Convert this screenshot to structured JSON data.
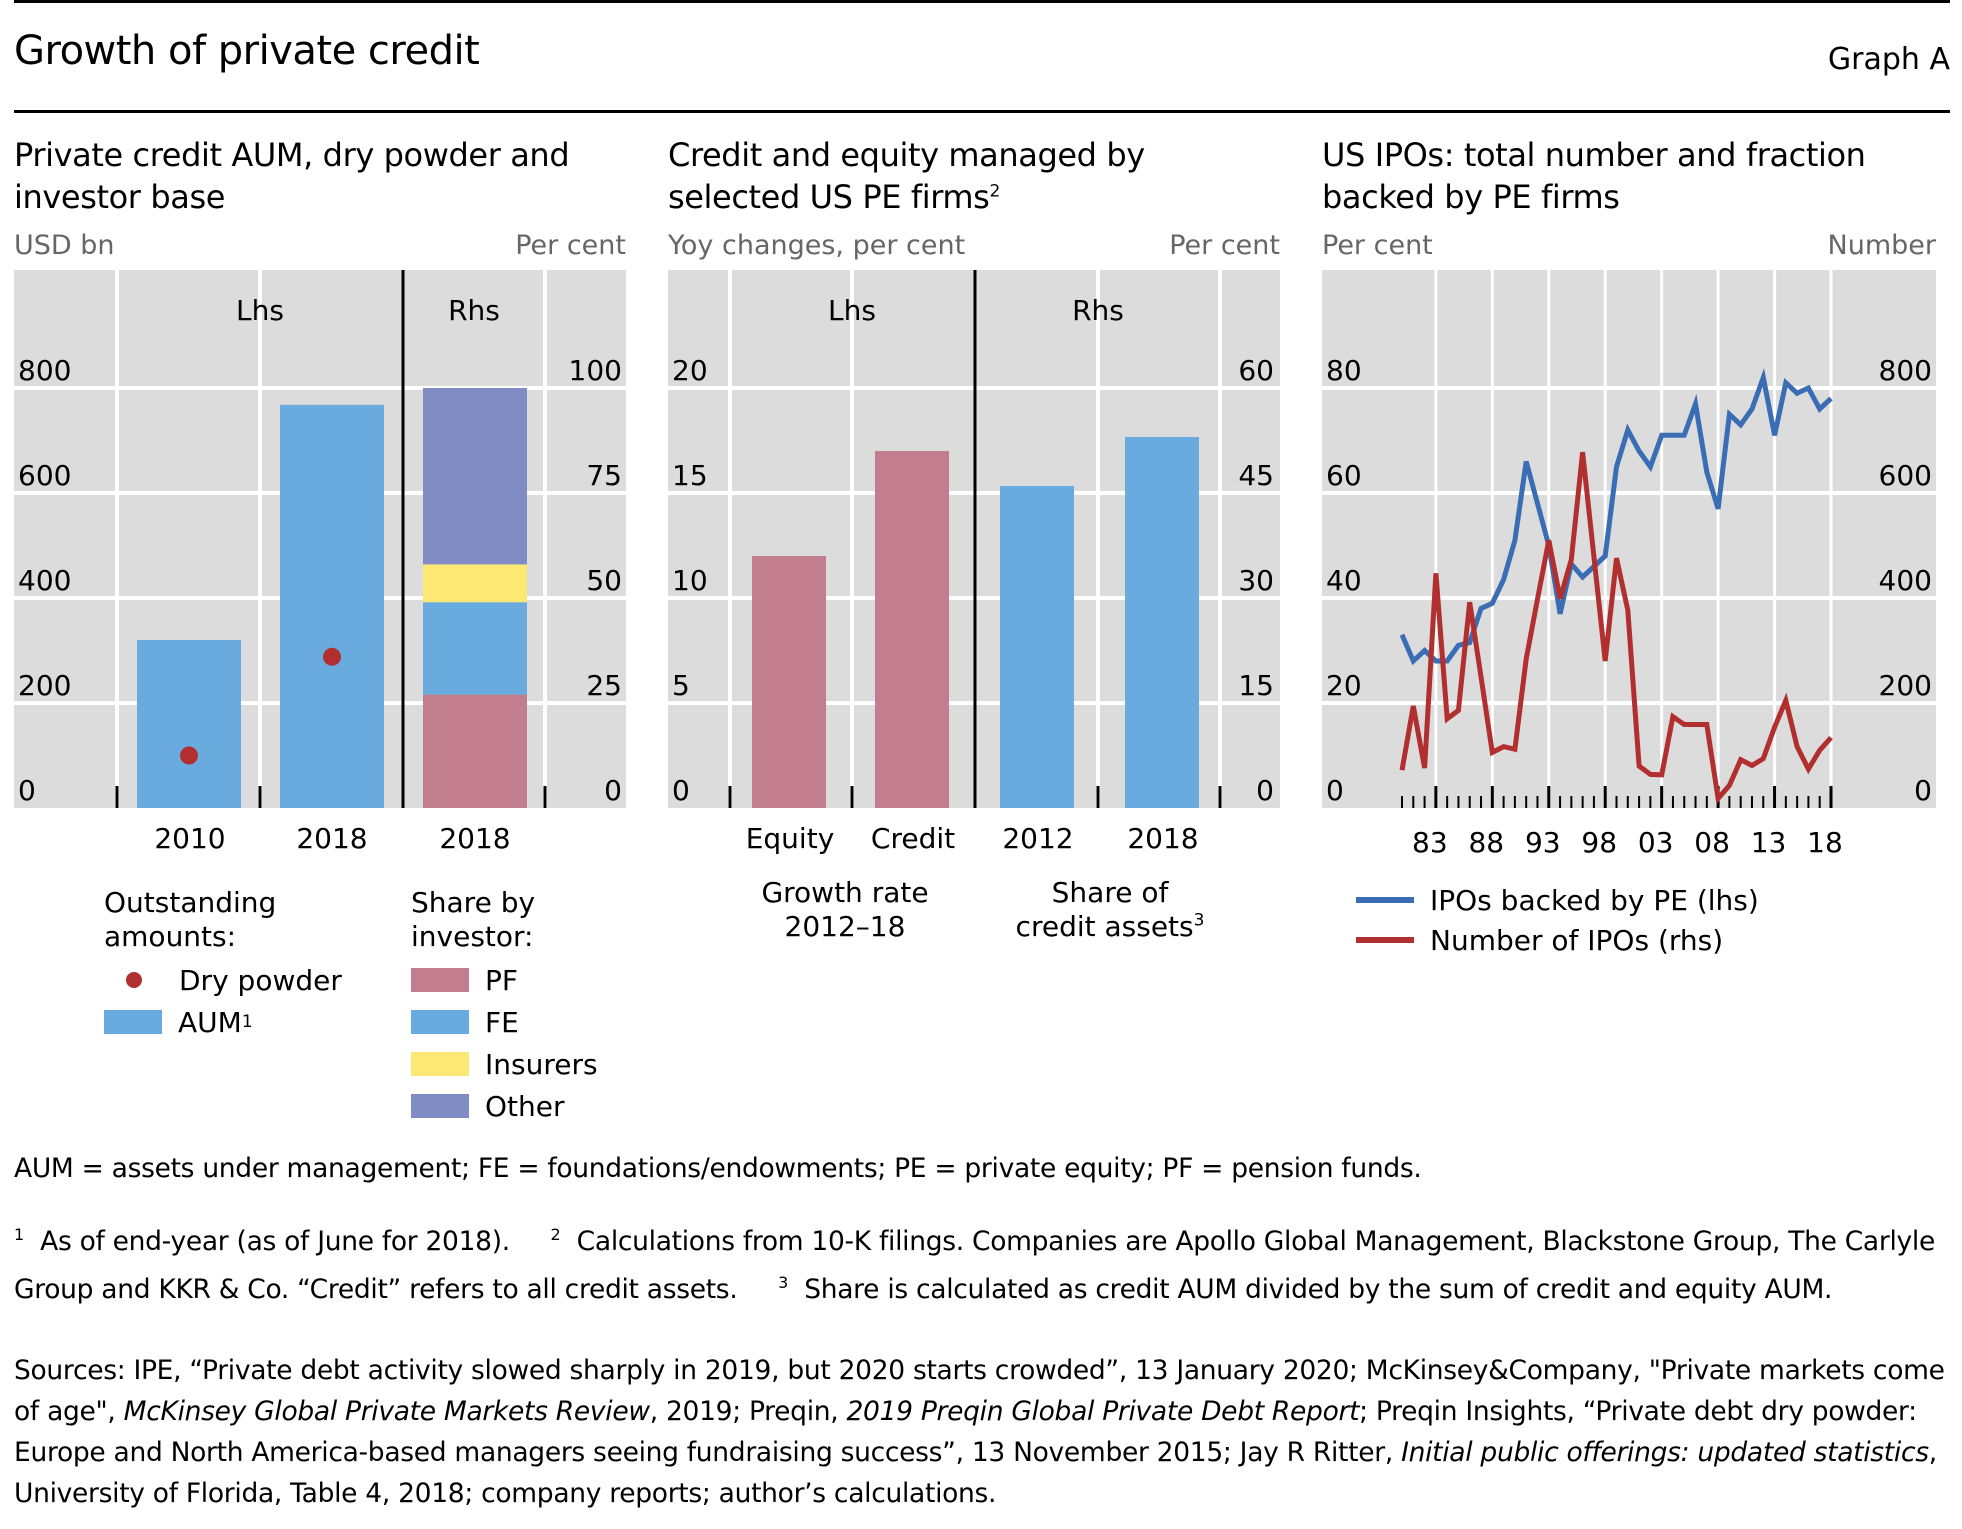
{
  "header": {
    "title": "Growth of private credit",
    "graph_label": "Graph A"
  },
  "panels": {
    "p1": {
      "title_line1": "Private credit AUM, dry powder and",
      "title_line2": "investor base",
      "unit_left": "USD bn",
      "unit_right": "Per cent",
      "lhs_marker": "Lhs",
      "rhs_marker": "Rhs",
      "categories": [
        "2010",
        "2018",
        "2018"
      ],
      "legend": {
        "group1_title_line1": "Outstanding",
        "group1_title_line2": "amounts:",
        "dry_powder": "Dry powder",
        "aum": "AUM",
        "aum_sup": "1",
        "group2_title_line1": "Share by",
        "group2_title_line2": "investor:",
        "pf": "PF",
        "fe": "FE",
        "insurers": "Insurers",
        "other": "Other"
      }
    },
    "p2": {
      "title_line1": "Credit and equity managed by",
      "title_line2": "selected US PE firms",
      "title_sup": "2",
      "unit_left": "Yoy changes, per cent",
      "unit_right": "Per cent",
      "lhs_marker": "Lhs",
      "rhs_marker": "Rhs",
      "categories": [
        "Equity",
        "Credit",
        "2012",
        "2018"
      ],
      "group1_line1": "Growth rate",
      "group1_line2": "2012–18",
      "group2_line1": "Share of",
      "group2_line2": "credit assets",
      "group2_sup": "3"
    },
    "p3": {
      "title_line1": "US IPOs: total number and fraction",
      "title_line2": "backed by PE firms",
      "unit_left": "Per cent",
      "unit_right": "Number",
      "legend": {
        "blue": "IPOs backed by PE (lhs)",
        "red": "Number of IPOs (rhs)"
      }
    }
  },
  "colors": {
    "plot_bg": "#dcdcdc",
    "aum": "#6aabdf",
    "dry_powder": "#b22f2f",
    "pf": "#c27e8e",
    "fe": "#6aabdf",
    "insurers": "#fde873",
    "other": "#808cc3",
    "growth": "#c27e8e",
    "share": "#6aabdf",
    "ipo_pe": "#3a6db3",
    "ipo_num": "#b22f2f"
  },
  "chart_data": [
    {
      "type": "bar",
      "title": "Private credit AUM, dry powder and investor base",
      "lhs": {
        "ylabel": "USD bn",
        "ylim": [
          0,
          800
        ],
        "yticks": [
          0,
          200,
          400,
          600,
          800
        ],
        "categories": [
          "2010",
          "2018"
        ],
        "series": [
          {
            "name": "AUM",
            "kind": "bar",
            "values": [
              320,
              768
            ]
          },
          {
            "name": "Dry powder",
            "kind": "dot",
            "values": [
              100,
              288
            ]
          }
        ]
      },
      "rhs": {
        "ylabel": "Per cent",
        "ylim": [
          0,
          100
        ],
        "yticks": [
          0,
          25,
          50,
          75,
          100
        ],
        "categories": [
          "2018"
        ],
        "stacked": true,
        "series": [
          {
            "name": "PF",
            "values": [
              27
            ]
          },
          {
            "name": "FE",
            "values": [
              22
            ]
          },
          {
            "name": "Insurers",
            "values": [
              9
            ]
          },
          {
            "name": "Other",
            "values": [
              42
            ]
          }
        ]
      },
      "grid": true
    },
    {
      "type": "bar",
      "title": "Credit and equity managed by selected US PE firms",
      "lhs": {
        "ylabel": "Yoy changes, per cent",
        "ylim": [
          0,
          20
        ],
        "yticks": [
          0,
          5,
          10,
          15,
          20
        ],
        "group": "Growth rate 2012–18",
        "categories": [
          "Equity",
          "Credit"
        ],
        "values": [
          12,
          17
        ]
      },
      "rhs": {
        "ylabel": "Per cent",
        "ylim": [
          0,
          60
        ],
        "yticks": [
          0,
          15,
          30,
          45,
          60
        ],
        "group": "Share of credit assets",
        "categories": [
          "2012",
          "2018"
        ],
        "values": [
          46,
          53
        ]
      },
      "grid": true
    },
    {
      "type": "line",
      "title": "US IPOs: total number and fraction backed by PE firms",
      "x": [
        1980,
        1981,
        1982,
        1983,
        1984,
        1985,
        1986,
        1987,
        1988,
        1989,
        1990,
        1991,
        1992,
        1993,
        1994,
        1995,
        1996,
        1997,
        1998,
        1999,
        2000,
        2001,
        2002,
        2003,
        2004,
        2005,
        2006,
        2007,
        2008,
        2009,
        2010,
        2011,
        2012,
        2013,
        2014,
        2015,
        2016,
        2017,
        2018
      ],
      "xtick_labels": [
        "83",
        "88",
        "93",
        "98",
        "03",
        "08",
        "13",
        "18"
      ],
      "xlim": [
        1980,
        2018
      ],
      "lhs": {
        "ylabel": "Per cent",
        "ylim": [
          0,
          80
        ],
        "yticks": [
          0,
          20,
          40,
          60,
          80
        ]
      },
      "rhs": {
        "ylabel": "Number",
        "ylim": [
          0,
          800
        ],
        "yticks": [
          0,
          200,
          400,
          600,
          800
        ]
      },
      "series": [
        {
          "name": "IPOs backed by PE (lhs)",
          "axis": "lhs",
          "values": [
            33,
            28,
            30,
            28,
            28,
            31,
            31.5,
            38,
            39,
            43.5,
            51,
            66,
            58,
            50,
            37,
            46.5,
            44,
            46,
            48,
            65,
            72,
            68,
            65,
            71,
            71,
            71,
            77,
            64,
            57,
            75,
            73,
            76,
            82,
            71,
            81,
            79,
            80,
            76,
            78
          ]
        },
        {
          "name": "Number of IPOs (rhs)",
          "axis": "rhs",
          "values": [
            72,
            194,
            76,
            447,
            170,
            186,
            392,
            250,
            106,
            117,
            112,
            284,
            398,
            510,
            399,
            473,
            678,
            479,
            280,
            476,
            377,
            80,
            64,
            63,
            174,
            159,
            159,
            159,
            18,
            43,
            92,
            81,
            94,
            154,
            205,
            117,
            74,
            110,
            134
          ]
        }
      ],
      "legend": "below",
      "grid": true
    }
  ],
  "notes": {
    "abbrev": "AUM = assets under management; FE = foundations/endowments; PE = private equity; PF = pension funds.",
    "fn1_num": "1",
    "fn1": "As of end-year (as of June for 2018).",
    "fn2_num": "2",
    "fn2": "Calculations from 10-K filings. Companies are Apollo Global Management, Blackstone Group, The Carlyle Group and KKR & Co. “Credit” refers to all credit assets.",
    "fn3_num": "3",
    "fn3": "Share is calculated as credit AUM divided by the sum of credit and equity AUM.",
    "sources_a": "Sources: IPE, “Private debt activity slowed sharply in 2019, but 2020 starts crowded”, 13 January 2020; McKinsey&Company, \"Private markets come of age\", ",
    "sources_b_italic": "McKinsey Global Private Markets Review",
    "sources_c": ", 2019; Preqin, ",
    "sources_d_italic": "2019 Preqin Global Private Debt Report",
    "sources_e": "; Preqin Insights, “Private debt dry powder: Europe and North America-based managers seeing fundraising success”, 13 November 2015; Jay R Ritter, ",
    "sources_f_italic": "Initial public offerings: updated statistics",
    "sources_g": ", University of Florida, Table 4, 2018; company reports; author’s calculations."
  }
}
